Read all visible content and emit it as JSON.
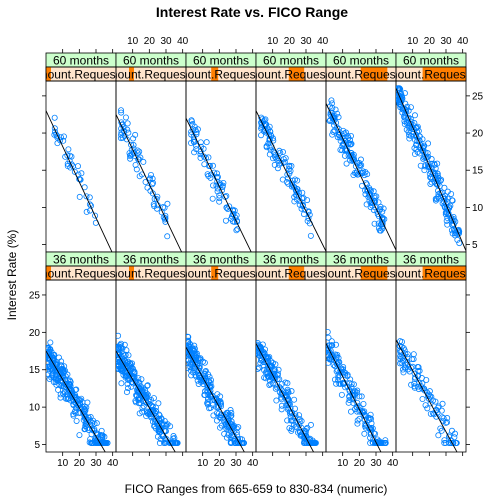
{
  "chart_data": {
    "type": "scatter",
    "title": "Interest Rate vs. FICO Range",
    "xlabel": "FICO Ranges from 665-659 to 830-834 (numeric)",
    "ylabel": "Interest Rate (%)",
    "xlim": [
      0,
      42
    ],
    "ylim": [
      4,
      27
    ],
    "x_ticks": [
      10,
      20,
      30,
      40
    ],
    "y_ticks": [
      5,
      10,
      15,
      20,
      25
    ],
    "strip_outer_label": "Amount.Requested",
    "colors": {
      "points": "#0080ff",
      "strip_top": "#ccffcc",
      "strip_bottom": "#ffe5cc",
      "strip_fill": "#ff7f00",
      "line": "#000000"
    },
    "rows": [
      {
        "loan_length": "60 months",
        "panels": [
          {
            "amount_fill": 0.02,
            "n": 40,
            "fit": {
              "intercept": 23.0,
              "slope": -0.48
            },
            "x_range": [
              5,
              30
            ]
          },
          {
            "amount_fill": 0.04,
            "n": 70,
            "fit": {
              "intercept": 22.5,
              "slope": -0.47
            },
            "x_range": [
              3,
              32
            ]
          },
          {
            "amount_fill": 0.1,
            "n": 80,
            "fit": {
              "intercept": 22.0,
              "slope": -0.46
            },
            "x_range": [
              3,
              32
            ]
          },
          {
            "amount_fill": 0.22,
            "n": 110,
            "fit": {
              "intercept": 23.0,
              "slope": -0.45
            },
            "x_range": [
              3,
              33
            ]
          },
          {
            "amount_fill": 0.38,
            "n": 160,
            "fit": {
              "intercept": 24.0,
              "slope": -0.47
            },
            "x_range": [
              2,
              35
            ]
          },
          {
            "amount_fill": 0.62,
            "n": 230,
            "fit": {
              "intercept": 26.0,
              "slope": -0.52
            },
            "x_range": [
              1,
              38
            ]
          }
        ]
      },
      {
        "loan_length": "36 months",
        "panels": [
          {
            "amount_fill": 0.02,
            "n": 300,
            "fit": {
              "intercept": 17.5,
              "slope": -0.38
            },
            "x_range": [
              1,
              37
            ]
          },
          {
            "amount_fill": 0.04,
            "n": 300,
            "fit": {
              "intercept": 17.5,
              "slope": -0.38
            },
            "x_range": [
              1,
              37
            ]
          },
          {
            "amount_fill": 0.1,
            "n": 250,
            "fit": {
              "intercept": 18.0,
              "slope": -0.4
            },
            "x_range": [
              1,
              35
            ]
          },
          {
            "amount_fill": 0.22,
            "n": 220,
            "fit": {
              "intercept": 18.5,
              "slope": -0.42
            },
            "x_range": [
              1,
              36
            ]
          },
          {
            "amount_fill": 0.38,
            "n": 170,
            "fit": {
              "intercept": 18.5,
              "slope": -0.44
            },
            "x_range": [
              1,
              36
            ]
          },
          {
            "amount_fill": 0.62,
            "n": 110,
            "fit": {
              "intercept": 19.0,
              "slope": -0.41
            },
            "x_range": [
              2,
              40
            ]
          }
        ]
      }
    ]
  }
}
